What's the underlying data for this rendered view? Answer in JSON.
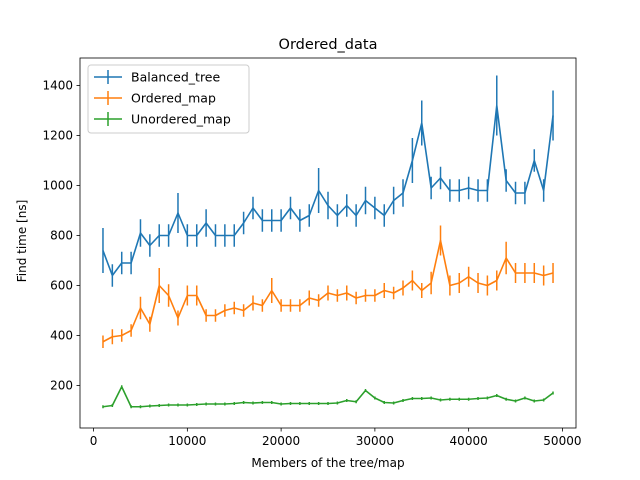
{
  "chart_data": {
    "type": "line",
    "title": "Ordered_data",
    "xlabel": "Members of the tree/map",
    "ylabel": "Find time [ns]",
    "xlim": [
      -1450,
      51450
    ],
    "ylim": [
      30,
      1510
    ],
    "x_ticks": [
      0,
      10000,
      20000,
      30000,
      40000,
      50000
    ],
    "y_ticks": [
      200,
      400,
      600,
      800,
      1000,
      1200,
      1400
    ],
    "x_tick_labels": [
      "0",
      "10000",
      "20000",
      "30000",
      "40000",
      "50000"
    ],
    "y_tick_labels": [
      "200",
      "400",
      "600",
      "800",
      "1000",
      "1200",
      "1400"
    ],
    "legend_position": "upper-left",
    "grid": false,
    "x": [
      1000,
      2000,
      3000,
      4000,
      5000,
      6000,
      7000,
      8000,
      9000,
      10000,
      11000,
      12000,
      13000,
      14000,
      15000,
      16000,
      17000,
      18000,
      19000,
      20000,
      21000,
      22000,
      23000,
      24000,
      25000,
      26000,
      27000,
      28000,
      29000,
      30000,
      31000,
      32000,
      33000,
      34000,
      35000,
      36000,
      37000,
      38000,
      39000,
      40000,
      41000,
      42000,
      43000,
      44000,
      45000,
      46000,
      47000,
      48000,
      49000
    ],
    "series": [
      {
        "name": "Balanced_tree",
        "color": "#1f77b4",
        "values": [
          740,
          640,
          690,
          690,
          810,
          760,
          800,
          800,
          890,
          800,
          800,
          850,
          800,
          800,
          800,
          850,
          910,
          860,
          860,
          860,
          910,
          860,
          880,
          980,
          920,
          880,
          920,
          880,
          940,
          910,
          880,
          940,
          970,
          1100,
          1250,
          990,
          1030,
          980,
          980,
          990,
          980,
          980,
          1320,
          1020,
          970,
          970,
          1100,
          980,
          1280
        ],
        "errors": [
          90,
          45,
          45,
          45,
          55,
          45,
          45,
          45,
          80,
          45,
          45,
          55,
          45,
          45,
          45,
          45,
          45,
          45,
          45,
          45,
          45,
          45,
          45,
          90,
          55,
          45,
          45,
          45,
          55,
          45,
          45,
          55,
          55,
          90,
          90,
          45,
          45,
          45,
          45,
          45,
          45,
          45,
          120,
          45,
          45,
          45,
          45,
          45,
          100
        ]
      },
      {
        "name": "Ordered_map",
        "color": "#ff7f0e",
        "values": [
          375,
          395,
          400,
          420,
          510,
          445,
          600,
          560,
          470,
          560,
          560,
          480,
          480,
          500,
          510,
          500,
          530,
          520,
          580,
          520,
          520,
          520,
          550,
          540,
          570,
          560,
          570,
          550,
          560,
          560,
          580,
          570,
          590,
          620,
          580,
          610,
          780,
          600,
          610,
          635,
          610,
          600,
          620,
          710,
          650,
          650,
          650,
          640,
          650
        ],
        "errors": [
          25,
          30,
          25,
          25,
          45,
          30,
          70,
          45,
          30,
          40,
          40,
          25,
          25,
          25,
          25,
          25,
          30,
          25,
          50,
          25,
          25,
          25,
          30,
          25,
          30,
          25,
          30,
          25,
          25,
          25,
          30,
          25,
          30,
          40,
          30,
          45,
          60,
          40,
          40,
          40,
          40,
          40,
          40,
          65,
          40,
          40,
          40,
          40,
          40
        ]
      },
      {
        "name": "Unordered_map",
        "color": "#2ca02c",
        "values": [
          115,
          120,
          195,
          115,
          115,
          118,
          120,
          122,
          122,
          122,
          124,
          126,
          126,
          126,
          128,
          132,
          130,
          132,
          132,
          126,
          128,
          128,
          128,
          128,
          128,
          130,
          140,
          135,
          180,
          150,
          132,
          130,
          140,
          148,
          148,
          150,
          142,
          145,
          145,
          145,
          148,
          150,
          160,
          145,
          138,
          150,
          138,
          142,
          170
        ]
      }
    ]
  }
}
